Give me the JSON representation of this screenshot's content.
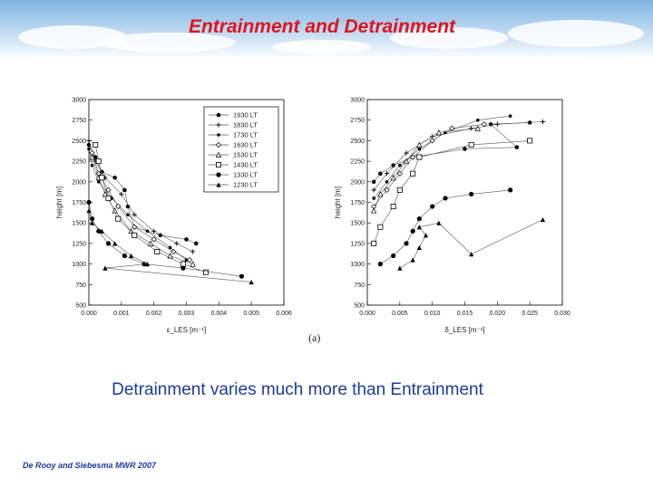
{
  "slide": {
    "title": "Entrainment and Detrainment",
    "caption": "Detrainment varies much more than Entrainment",
    "citation": "De Rooy and Siebesma MWR 2007"
  },
  "colors": {
    "title": "#e0141e",
    "caption": "#1f3b9a",
    "marks": "#000000"
  },
  "chart_data": [
    {
      "type": "scatter",
      "panel_label": "(a)",
      "ylabel": "height [m]",
      "xlabel": "ε_LES [m⁻¹]",
      "xlim": [
        0,
        0.006
      ],
      "ylim": [
        500,
        3000
      ],
      "xticks": [
        "0.000",
        "0.001",
        "0.002",
        "0.003",
        "0.004",
        "0.005",
        "0.006"
      ],
      "yticks": [
        "500",
        "750",
        "1000",
        "1250",
        "1500",
        "1750",
        "2000",
        "2250",
        "2500",
        "2750",
        "3000"
      ],
      "legend_position": "top-right",
      "series": [
        {
          "name": "1930 LT",
          "marker": "pentagon-filled",
          "points": [
            [
              0.0,
              2450
            ],
            [
              0.0002,
              2300
            ],
            [
              0.0004,
              2120
            ],
            [
              0.0008,
              2050
            ],
            [
              0.0011,
              1900
            ],
            [
              0.0012,
              1700
            ],
            [
              0.0014,
              1450
            ],
            [
              0.0022,
              1350
            ],
            [
              0.003,
              1300
            ],
            [
              0.0033,
              1250
            ]
          ]
        },
        {
          "name": "1830 LT",
          "marker": "plus",
          "points": [
            [
              0.0,
              2500
            ],
            [
              0.0002,
              2250
            ],
            [
              0.0005,
              2050
            ],
            [
              0.001,
              1850
            ],
            [
              0.0014,
              1600
            ],
            [
              0.002,
              1400
            ],
            [
              0.0027,
              1250
            ],
            [
              0.0032,
              1150
            ]
          ]
        },
        {
          "name": "1730 LT",
          "marker": "dot",
          "points": [
            [
              0.0,
              2400
            ],
            [
              0.0001,
              2200
            ],
            [
              0.0003,
              2000
            ],
            [
              0.0007,
              1800
            ],
            [
              0.0012,
              1600
            ],
            [
              0.0018,
              1400
            ],
            [
              0.0025,
              1200
            ],
            [
              0.003,
              1050
            ]
          ]
        },
        {
          "name": "1630 LT",
          "marker": "diamond-open",
          "points": [
            [
              0.0001,
              2350
            ],
            [
              0.0003,
              2100
            ],
            [
              0.0006,
              1900
            ],
            [
              0.0009,
              1700
            ],
            [
              0.0014,
              1450
            ],
            [
              0.002,
              1300
            ],
            [
              0.0026,
              1150
            ],
            [
              0.0031,
              1050
            ]
          ]
        },
        {
          "name": "1530 LT",
          "marker": "triangle-open",
          "points": [
            [
              0.0001,
              2300
            ],
            [
              0.0003,
              2050
            ],
            [
              0.0005,
              1850
            ],
            [
              0.0008,
              1650
            ],
            [
              0.0013,
              1400
            ],
            [
              0.0019,
              1250
            ],
            [
              0.0025,
              1100
            ],
            [
              0.0032,
              1000
            ]
          ]
        },
        {
          "name": "1430 LT",
          "marker": "square-open",
          "points": [
            [
              0.0002,
              2450
            ],
            [
              0.0003,
              2250
            ],
            [
              0.0004,
              2050
            ],
            [
              0.0006,
              1800
            ],
            [
              0.0009,
              1550
            ],
            [
              0.0014,
              1350
            ],
            [
              0.0021,
              1150
            ],
            [
              0.0029,
              1000
            ],
            [
              0.0036,
              900
            ]
          ]
        },
        {
          "name": "1330 LT",
          "marker": "circle-filled",
          "points": [
            [
              0.0,
              1750
            ],
            [
              0.0001,
              1550
            ],
            [
              0.0003,
              1400
            ],
            [
              0.0006,
              1250
            ],
            [
              0.0011,
              1100
            ],
            [
              0.0017,
              1000
            ],
            [
              0.0029,
              950
            ],
            [
              0.0047,
              850
            ]
          ]
        },
        {
          "name": "1230 LT",
          "marker": "triangle-filled",
          "points": [
            [
              0.0,
              1650
            ],
            [
              0.0001,
              1500
            ],
            [
              0.0004,
              1400
            ],
            [
              0.0008,
              1250
            ],
            [
              0.0013,
              1100
            ],
            [
              0.0018,
              1000
            ],
            [
              0.0005,
              950
            ],
            [
              0.005,
              780
            ]
          ]
        }
      ]
    },
    {
      "type": "scatter",
      "panel_label": "",
      "ylabel": "height [m]",
      "xlabel": "δ_LES [m⁻¹]",
      "xlim": [
        0,
        0.03
      ],
      "ylim": [
        500,
        3000
      ],
      "xticks": [
        "0.000",
        "0.005",
        "0.010",
        "0.015",
        "0.020",
        "0.025",
        "0.030"
      ],
      "yticks": [
        "500",
        "750",
        "1000",
        "1250",
        "1500",
        "1750",
        "2000",
        "2250",
        "2500",
        "2750",
        "3000"
      ],
      "series": [
        {
          "name": "1930 LT",
          "marker": "pentagon-filled",
          "points": [
            [
              0.001,
              2000
            ],
            [
              0.002,
              2100
            ],
            [
              0.004,
              2200
            ],
            [
              0.007,
              2300
            ],
            [
              0.015,
              2400
            ],
            [
              0.023,
              2420
            ],
            [
              0.019,
              2700
            ],
            [
              0.025,
              2720
            ]
          ]
        },
        {
          "name": "1830 LT",
          "marker": "plus",
          "points": [
            [
              0.001,
              1900
            ],
            [
              0.003,
              2100
            ],
            [
              0.006,
              2350
            ],
            [
              0.01,
              2550
            ],
            [
              0.016,
              2650
            ],
            [
              0.02,
              2700
            ],
            [
              0.027,
              2730
            ]
          ]
        },
        {
          "name": "1730 LT",
          "marker": "dot",
          "points": [
            [
              0.001,
              1800
            ],
            [
              0.003,
              2000
            ],
            [
              0.005,
              2200
            ],
            [
              0.008,
              2400
            ],
            [
              0.012,
              2600
            ],
            [
              0.017,
              2750
            ],
            [
              0.022,
              2800
            ]
          ]
        },
        {
          "name": "1630 LT",
          "marker": "diamond-open",
          "points": [
            [
              0.001,
              1700
            ],
            [
              0.003,
              1900
            ],
            [
              0.005,
              2100
            ],
            [
              0.007,
              2300
            ],
            [
              0.01,
              2500
            ],
            [
              0.013,
              2650
            ],
            [
              0.018,
              2700
            ]
          ]
        },
        {
          "name": "1530 LT",
          "marker": "triangle-open",
          "points": [
            [
              0.001,
              1650
            ],
            [
              0.002,
              1850
            ],
            [
              0.004,
              2050
            ],
            [
              0.006,
              2250
            ],
            [
              0.008,
              2450
            ],
            [
              0.011,
              2600
            ],
            [
              0.017,
              2650
            ]
          ]
        },
        {
          "name": "1430 LT",
          "marker": "square-open",
          "points": [
            [
              0.001,
              1250
            ],
            [
              0.002,
              1450
            ],
            [
              0.004,
              1700
            ],
            [
              0.005,
              1900
            ],
            [
              0.007,
              2100
            ],
            [
              0.008,
              2300
            ],
            [
              0.016,
              2450
            ],
            [
              0.025,
              2500
            ]
          ]
        },
        {
          "name": "1330 LT",
          "marker": "circle-filled",
          "points": [
            [
              0.002,
              1000
            ],
            [
              0.004,
              1100
            ],
            [
              0.006,
              1250
            ],
            [
              0.007,
              1400
            ],
            [
              0.008,
              1550
            ],
            [
              0.01,
              1700
            ],
            [
              0.012,
              1800
            ],
            [
              0.016,
              1850
            ],
            [
              0.022,
              1900
            ]
          ]
        },
        {
          "name": "1230 LT",
          "marker": "triangle-filled",
          "points": [
            [
              0.005,
              950
            ],
            [
              0.007,
              1050
            ],
            [
              0.008,
              1200
            ],
            [
              0.009,
              1350
            ],
            [
              0.008,
              1450
            ],
            [
              0.011,
              1500
            ],
            [
              0.016,
              1120
            ],
            [
              0.027,
              1540
            ]
          ]
        }
      ]
    }
  ]
}
